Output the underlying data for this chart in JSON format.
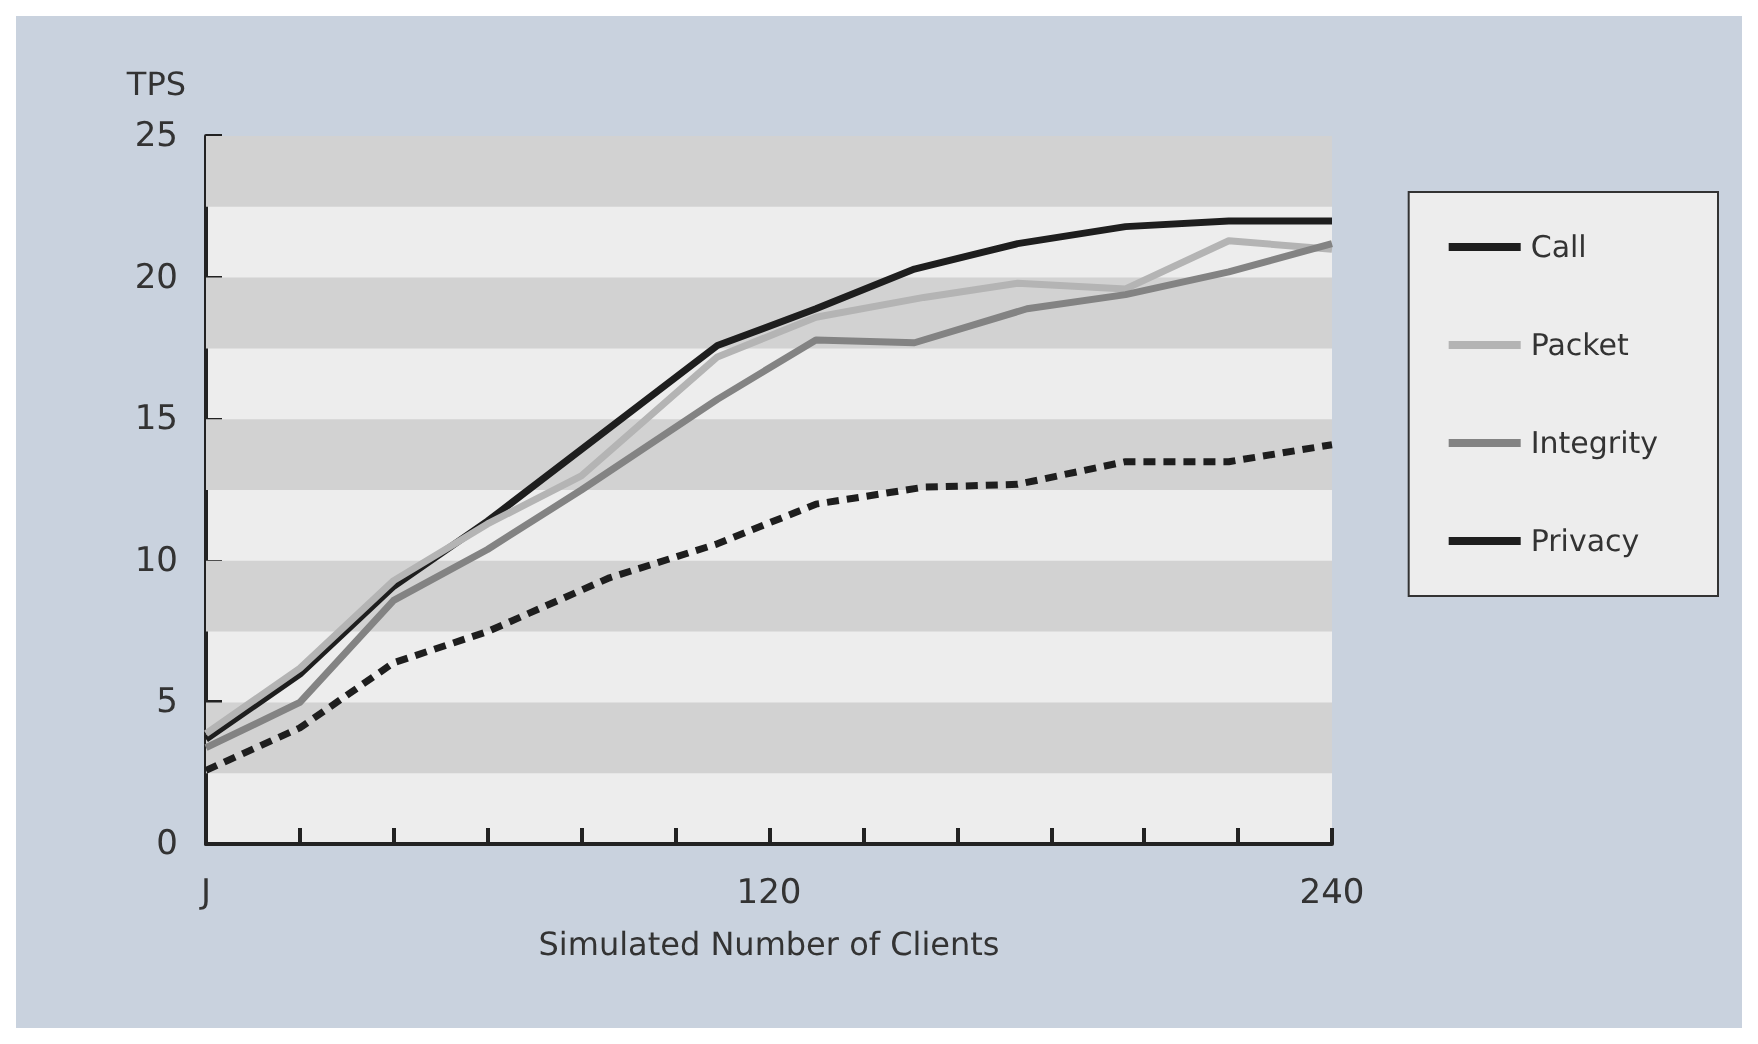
{
  "chart_data": {
    "type": "line",
    "ylabel": "TPS",
    "xlabel": "Simulated Number of Clients",
    "xlim": [
      0,
      240
    ],
    "xticks": [
      {
        "value": 0,
        "label": "J"
      },
      {
        "value": 20,
        "label": null
      },
      {
        "value": 40,
        "label": null
      },
      {
        "value": 60,
        "label": null
      },
      {
        "value": 80,
        "label": null
      },
      {
        "value": 100,
        "label": null
      },
      120,
      {
        "value": 140,
        "label": null
      },
      {
        "value": 160,
        "label": null
      },
      {
        "value": 180,
        "label": null
      },
      {
        "value": 200,
        "label": null
      },
      {
        "value": 220,
        "label": null
      },
      240
    ],
    "ylim": [
      0,
      25
    ],
    "yticks": [
      0,
      5,
      10,
      15,
      20,
      25
    ],
    "series": [
      {
        "name": "Call",
        "color": "#1e1e1e",
        "line_style": "solid",
        "x": [
          0,
          20,
          40,
          60,
          109,
          130,
          151,
          173,
          196,
          218,
          240
        ],
        "values": [
          3.7,
          6.0,
          9.1,
          11.4,
          17.6,
          18.9,
          20.3,
          21.2,
          21.8,
          22.0,
          22.0
        ]
      },
      {
        "name": "Packet",
        "color": "#b4b4b4",
        "line_style": "solid",
        "x": [
          0,
          20,
          40,
          60,
          80,
          109,
          130,
          153,
          173,
          196,
          218,
          240
        ],
        "values": [
          3.9,
          6.2,
          9.3,
          11.3,
          13.0,
          17.2,
          18.6,
          19.3,
          19.8,
          19.6,
          21.3,
          21.0
        ]
      },
      {
        "name": "Integrity",
        "color": "#838383",
        "line_style": "solid",
        "x": [
          0,
          20,
          40,
          60,
          80,
          109,
          130,
          151,
          175,
          196,
          218,
          240
        ],
        "values": [
          3.4,
          5.0,
          8.6,
          10.4,
          12.5,
          15.7,
          17.8,
          17.7,
          18.9,
          19.4,
          20.2,
          21.2
        ]
      },
      {
        "name": "Privacy",
        "color": "#1e1e1e",
        "line_style": "dashed",
        "x": [
          0,
          20,
          40,
          60,
          86,
          109,
          130,
          153,
          173,
          196,
          218,
          240
        ],
        "values": [
          2.6,
          4.1,
          6.4,
          7.5,
          9.4,
          10.6,
          12.0,
          12.6,
          12.7,
          13.5,
          13.5,
          14.1
        ]
      }
    ],
    "bands": [
      {
        "axis": "y",
        "from": 2.5,
        "to": 5,
        "color": "#d2d2d2"
      },
      {
        "axis": "y",
        "from": 7.5,
        "to": 10,
        "color": "#d2d2d2"
      },
      {
        "axis": "y",
        "from": 12.5,
        "to": 15,
        "color": "#d2d2d2"
      },
      {
        "axis": "y",
        "from": 17.5,
        "to": 20,
        "color": "#d2d2d2"
      },
      {
        "axis": "y",
        "from": 22.5,
        "to": 25,
        "color": "#d2d2d2"
      }
    ],
    "grid": false,
    "legend": "right",
    "marker": "none"
  }
}
